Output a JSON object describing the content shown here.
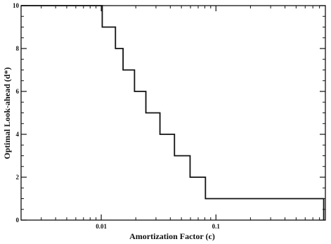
{
  "chart_data": {
    "type": "line",
    "step": true,
    "xlabel": "Amortization Factor (c)",
    "ylabel": "Optimal Look-ahead (d*)",
    "x_scale": "log",
    "xlim": [
      0.002,
      0.9
    ],
    "ylim": [
      0,
      10
    ],
    "x_ticks": [
      {
        "value": 0.01,
        "label": "0.01"
      },
      {
        "value": 0.1,
        "label": "0.1"
      }
    ],
    "y_ticks": [
      {
        "value": 0,
        "label": "0"
      },
      {
        "value": 2,
        "label": "2"
      },
      {
        "value": 4,
        "label": "4"
      },
      {
        "value": 6,
        "label": "6"
      },
      {
        "value": 8,
        "label": "8"
      },
      {
        "value": 10,
        "label": "10"
      }
    ],
    "series": [
      {
        "points": [
          {
            "x": 0.002,
            "y": 10
          },
          {
            "x": 0.0102,
            "y": 10
          },
          {
            "x": 0.0102,
            "y": 9
          },
          {
            "x": 0.0133,
            "y": 9
          },
          {
            "x": 0.0133,
            "y": 8
          },
          {
            "x": 0.0155,
            "y": 8
          },
          {
            "x": 0.0155,
            "y": 7
          },
          {
            "x": 0.0195,
            "y": 7
          },
          {
            "x": 0.0195,
            "y": 6
          },
          {
            "x": 0.0245,
            "y": 6
          },
          {
            "x": 0.0245,
            "y": 5
          },
          {
            "x": 0.0325,
            "y": 5
          },
          {
            "x": 0.0325,
            "y": 4
          },
          {
            "x": 0.0435,
            "y": 4
          },
          {
            "x": 0.0435,
            "y": 3
          },
          {
            "x": 0.0595,
            "y": 3
          },
          {
            "x": 0.0595,
            "y": 2
          },
          {
            "x": 0.081,
            "y": 2
          },
          {
            "x": 0.081,
            "y": 1
          },
          {
            "x": 0.87,
            "y": 1
          },
          {
            "x": 0.87,
            "y": 0
          }
        ]
      }
    ],
    "grid": false,
    "colors": {
      "line": "#111111",
      "axes": "#111111",
      "background": "#ffffff"
    }
  }
}
